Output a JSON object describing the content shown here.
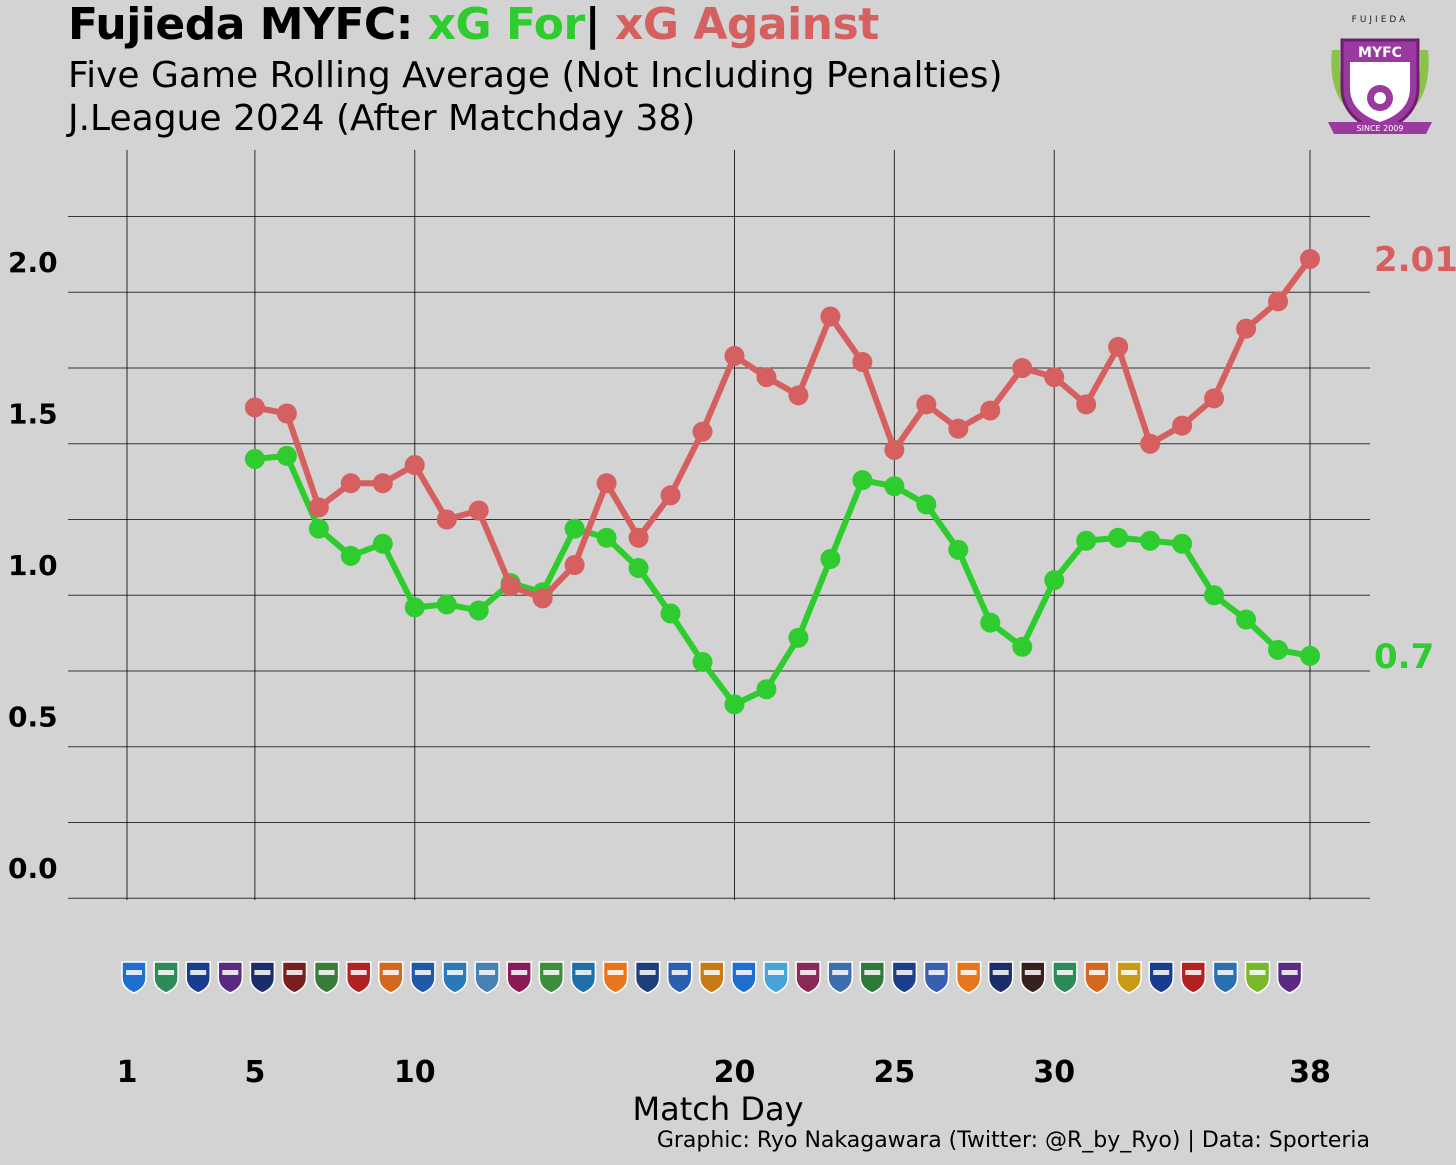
{
  "header": {
    "title_team": "Fujieda MYFC:",
    "title_for": "xG For",
    "title_sep": "|",
    "title_against": "xG Against",
    "subtitle": "Five Game Rolling Average (Not Including Penalties)",
    "subtitle2": "J.League 2024 (After Matchday 38)"
  },
  "logo": {
    "top_text": "FUJIEDA",
    "name_text": "MYFC",
    "ribbon_text": "SINCE 2009"
  },
  "credit": "Graphic: Ryo Nakagawara (Twitter: @R_by_Ryo) | Data: Sporteria",
  "colors": {
    "for": "#2ecc2e",
    "against": "#d65f5f",
    "background": "#d3d3d3"
  },
  "chart_data": {
    "type": "line",
    "title": "Fujieda MYFC: xG For | xG Against",
    "subtitle": "Five Game Rolling Average (Not Including Penalties)",
    "xlabel": "Match Day",
    "ylabel": "",
    "xlim": [
      1,
      38
    ],
    "ylim": [
      0,
      2.2
    ],
    "xticks": [
      1,
      5,
      10,
      20,
      25,
      30,
      38
    ],
    "yticks": [
      0.0,
      0.5,
      1.0,
      1.5,
      2.0
    ],
    "ytick_labels": [
      "0.0",
      "0.5",
      "1.0",
      "1.5",
      "2.0"
    ],
    "grid": true,
    "legend": "none (series named in title colors)",
    "x": [
      5,
      6,
      7,
      8,
      9,
      10,
      11,
      12,
      13,
      14,
      15,
      16,
      17,
      18,
      19,
      20,
      21,
      22,
      23,
      24,
      25,
      26,
      27,
      28,
      29,
      30,
      31,
      32,
      33,
      34,
      35,
      36,
      37,
      38
    ],
    "series": [
      {
        "name": "xG For",
        "color": "#2ecc2e",
        "values": [
          1.35,
          1.36,
          1.12,
          1.03,
          1.07,
          0.86,
          0.87,
          0.85,
          0.94,
          0.91,
          1.12,
          1.09,
          0.99,
          0.84,
          0.68,
          0.54,
          0.59,
          0.76,
          1.02,
          1.28,
          1.26,
          1.2,
          1.05,
          0.81,
          0.73,
          0.95,
          1.08,
          1.09,
          1.08,
          1.07,
          0.9,
          0.82,
          0.72,
          0.7
        ],
        "end_label": "0.7"
      },
      {
        "name": "xG Against",
        "color": "#d65f5f",
        "values": [
          1.52,
          1.5,
          1.19,
          1.27,
          1.27,
          1.33,
          1.15,
          1.18,
          0.93,
          0.89,
          1.0,
          1.27,
          1.09,
          1.23,
          1.44,
          1.69,
          1.62,
          1.56,
          1.82,
          1.67,
          1.38,
          1.53,
          1.45,
          1.51,
          1.65,
          1.62,
          1.53,
          1.72,
          1.4,
          1.46,
          1.55,
          1.78,
          1.87,
          2.01
        ],
        "end_label": "2.01"
      }
    ],
    "opponent_badge_row": true
  }
}
